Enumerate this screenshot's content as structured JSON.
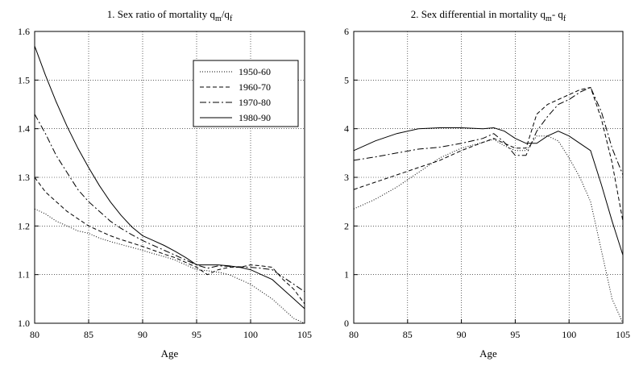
{
  "chart_data": [
    {
      "type": "line",
      "title_main": "1. Sex ratio of mortality q",
      "title_sub1": "m",
      "title_sep": "/q",
      "title_sub2": "f",
      "xlabel": "Age",
      "ylabel": "",
      "xlim": [
        80,
        105
      ],
      "ylim": [
        1.0,
        1.6
      ],
      "xticks": [
        80,
        85,
        90,
        95,
        100,
        105
      ],
      "yticks": [
        "1.0",
        "1.1",
        "1.2",
        "1.3",
        "1.4",
        "1.5",
        "1.6"
      ],
      "grid": true,
      "legend_position": "top-right",
      "series": [
        {
          "name": "1950-60",
          "dash": "dotted",
          "x": [
            80,
            81,
            82,
            83,
            84,
            85,
            86,
            87,
            88,
            89,
            90,
            91,
            92,
            93,
            94,
            95,
            96,
            97,
            98,
            99,
            100,
            101,
            102,
            103,
            104,
            105
          ],
          "y": [
            1.235,
            1.225,
            1.21,
            1.2,
            1.19,
            1.185,
            1.175,
            1.168,
            1.162,
            1.156,
            1.15,
            1.143,
            1.137,
            1.13,
            1.12,
            1.11,
            1.108,
            1.105,
            1.1,
            1.09,
            1.08,
            1.065,
            1.05,
            1.03,
            1.01,
            1.0
          ]
        },
        {
          "name": "1960-70",
          "dash": "dashed",
          "x": [
            80,
            81,
            82,
            83,
            84,
            85,
            86,
            87,
            88,
            89,
            90,
            91,
            92,
            93,
            94,
            95,
            96,
            97,
            98,
            99,
            100,
            101,
            102,
            103,
            104,
            105
          ],
          "y": [
            1.3,
            1.27,
            1.25,
            1.23,
            1.215,
            1.2,
            1.19,
            1.18,
            1.172,
            1.165,
            1.158,
            1.15,
            1.142,
            1.135,
            1.125,
            1.115,
            1.1,
            1.11,
            1.115,
            1.115,
            1.12,
            1.118,
            1.115,
            1.09,
            1.07,
            1.04
          ]
        },
        {
          "name": "1970-80",
          "dash": "dashdot",
          "x": [
            80,
            81,
            82,
            83,
            84,
            85,
            86,
            87,
            88,
            89,
            90,
            91,
            92,
            93,
            94,
            95,
            96,
            97,
            98,
            99,
            100,
            101,
            102,
            103,
            104,
            105
          ],
          "y": [
            1.43,
            1.39,
            1.345,
            1.31,
            1.275,
            1.25,
            1.23,
            1.21,
            1.195,
            1.182,
            1.17,
            1.16,
            1.15,
            1.14,
            1.13,
            1.12,
            1.113,
            1.118,
            1.117,
            1.116,
            1.115,
            1.113,
            1.11,
            1.095,
            1.08,
            1.065
          ]
        },
        {
          "name": "1980-90",
          "dash": "solid",
          "x": [
            80,
            81,
            82,
            83,
            84,
            85,
            86,
            87,
            88,
            89,
            90,
            91,
            92,
            93,
            94,
            95,
            96,
            97,
            98,
            99,
            100,
            101,
            102,
            103,
            104,
            105
          ],
          "y": [
            1.57,
            1.51,
            1.455,
            1.405,
            1.36,
            1.32,
            1.283,
            1.25,
            1.222,
            1.198,
            1.18,
            1.17,
            1.16,
            1.148,
            1.135,
            1.12,
            1.12,
            1.12,
            1.118,
            1.115,
            1.11,
            1.1,
            1.09,
            1.07,
            1.05,
            1.03
          ]
        }
      ]
    },
    {
      "type": "line",
      "title_main": "2. Sex differential in mortality q",
      "title_sub1": "m",
      "title_sep": "- q",
      "title_sub2": "f",
      "xlabel": "Age",
      "ylabel": "",
      "xlim": [
        80,
        105
      ],
      "ylim": [
        0,
        6
      ],
      "xticks": [
        80,
        85,
        90,
        95,
        100,
        105
      ],
      "yticks": [
        "0",
        "1",
        "2",
        "3",
        "4",
        "5",
        "6"
      ],
      "grid": true,
      "series": [
        {
          "name": "1950-60",
          "dash": "dotted",
          "x": [
            80,
            82,
            84,
            86,
            88,
            90,
            92,
            93,
            94,
            95,
            96,
            97,
            98,
            99,
            100,
            101,
            102,
            103,
            104,
            105
          ],
          "y": [
            2.35,
            2.55,
            2.8,
            3.1,
            3.4,
            3.6,
            3.72,
            3.78,
            3.65,
            3.55,
            3.55,
            3.85,
            3.85,
            3.75,
            3.4,
            3.0,
            2.5,
            1.5,
            0.5,
            0.0
          ]
        },
        {
          "name": "1960-70",
          "dash": "dashed",
          "x": [
            80,
            82,
            84,
            86,
            88,
            90,
            92,
            93,
            94,
            95,
            96,
            97,
            98,
            99,
            100,
            101,
            102,
            103,
            104,
            105
          ],
          "y": [
            2.75,
            2.9,
            3.05,
            3.2,
            3.35,
            3.55,
            3.72,
            3.8,
            3.7,
            3.6,
            3.6,
            4.3,
            4.5,
            4.6,
            4.7,
            4.8,
            4.85,
            4.2,
            3.3,
            2.1
          ]
        },
        {
          "name": "1970-80",
          "dash": "dashdot",
          "x": [
            80,
            82,
            84,
            86,
            88,
            90,
            92,
            93,
            94,
            95,
            96,
            97,
            98,
            99,
            100,
            101,
            102,
            103,
            104,
            105
          ],
          "y": [
            3.35,
            3.42,
            3.5,
            3.58,
            3.62,
            3.7,
            3.8,
            3.9,
            3.72,
            3.45,
            3.45,
            3.95,
            4.25,
            4.5,
            4.6,
            4.75,
            4.85,
            4.35,
            3.6,
            3.05
          ]
        },
        {
          "name": "1980-90",
          "dash": "solid",
          "x": [
            80,
            82,
            84,
            86,
            88,
            90,
            92,
            93,
            94,
            95,
            96,
            97,
            98,
            99,
            100,
            101,
            102,
            103,
            104,
            105
          ],
          "y": [
            3.55,
            3.75,
            3.9,
            4.0,
            4.02,
            4.02,
            4.0,
            4.02,
            3.95,
            3.8,
            3.7,
            3.7,
            3.85,
            3.95,
            3.85,
            3.7,
            3.55,
            2.85,
            2.1,
            1.4
          ]
        }
      ]
    }
  ]
}
